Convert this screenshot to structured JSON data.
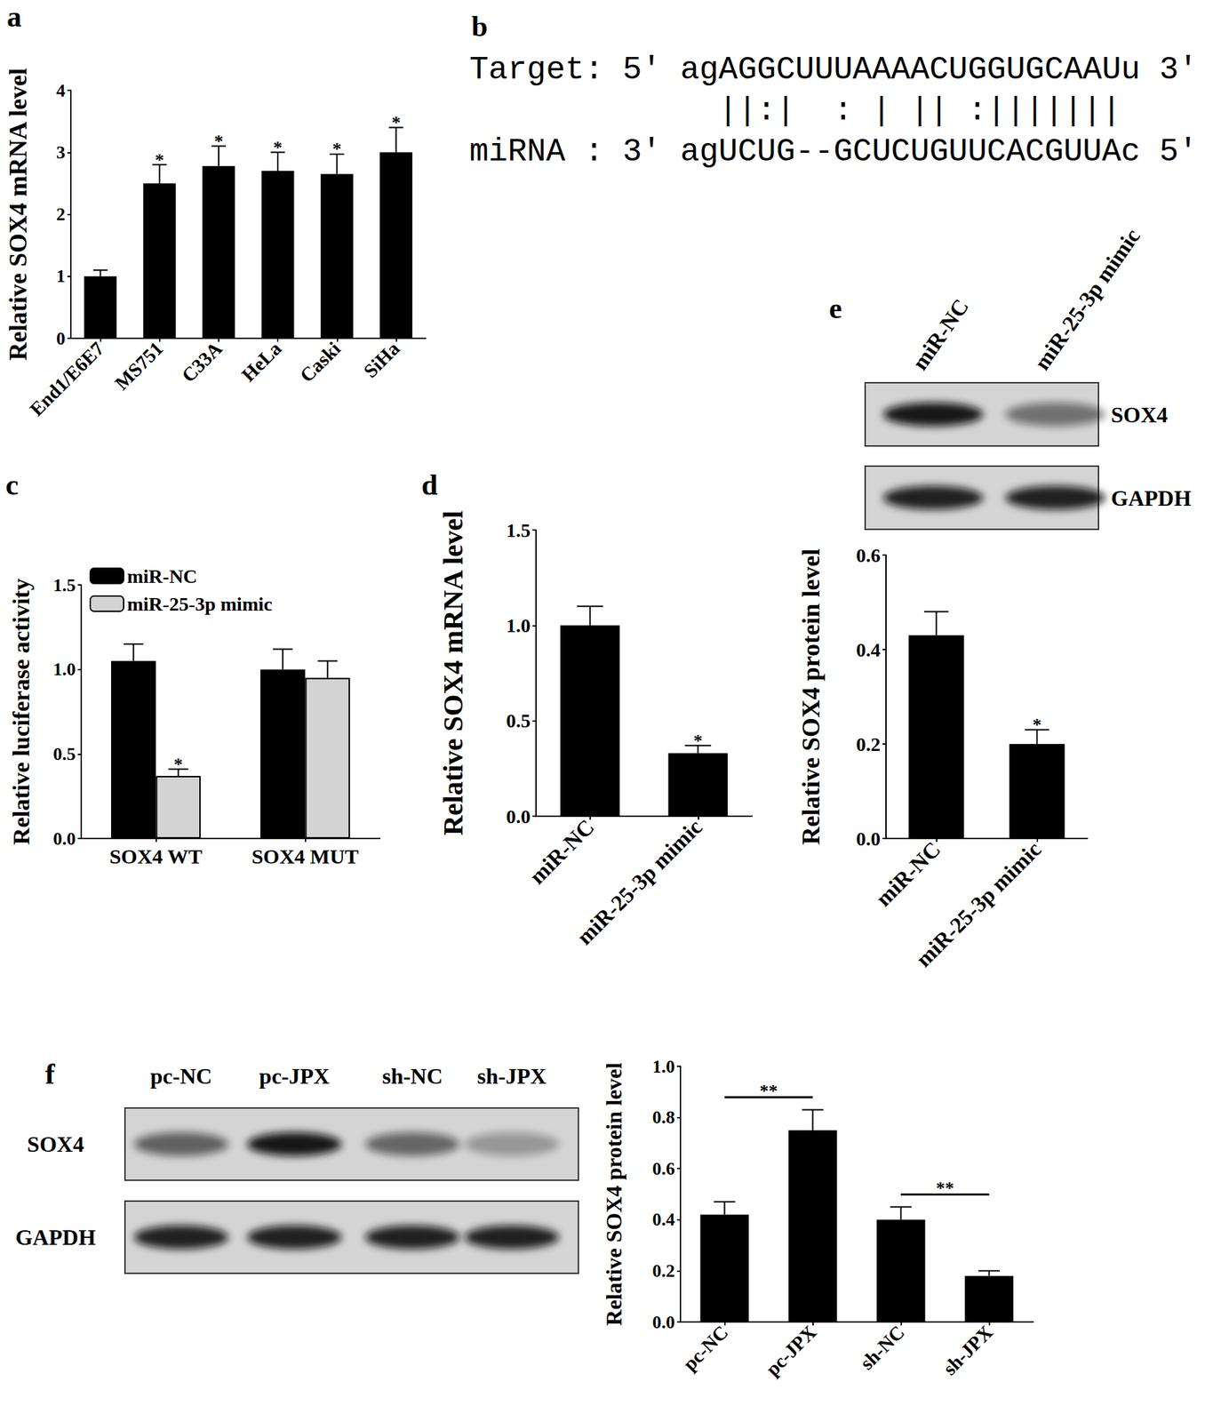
{
  "chart_data": [
    {
      "panel": "a",
      "type": "bar",
      "y_label": "Relative SOX4 mRNA level",
      "categories": [
        "End1/E6E7",
        "MS751",
        "C33A",
        "HeLa",
        "Caski",
        "SiHa"
      ],
      "values": [
        1.0,
        2.5,
        2.78,
        2.7,
        2.65,
        3.0
      ],
      "errors": [
        0.1,
        0.3,
        0.32,
        0.3,
        0.32,
        0.4
      ],
      "annotations": [
        {
          "category": "MS751",
          "text": "*"
        },
        {
          "category": "C33A",
          "text": "*"
        },
        {
          "category": "HeLa",
          "text": "*"
        },
        {
          "category": "Caski",
          "text": "*"
        },
        {
          "category": "SiHa",
          "text": "*"
        }
      ],
      "color": "#000000",
      "ylim": [
        0,
        4
      ],
      "yticks": [
        0,
        1,
        2,
        3,
        4
      ],
      "grid": false
    },
    {
      "panel": "c",
      "type": "bar",
      "y_label": "Relative luciferase activity",
      "categories": [
        "SOX4 WT",
        "SOX4 MUT"
      ],
      "series": [
        {
          "name": "miR-NC",
          "color": "#000000",
          "values": [
            1.05,
            1.0
          ],
          "errors": [
            0.1,
            0.12
          ]
        },
        {
          "name": "miR-25-3p mimic",
          "color": "#d3d3d3",
          "values": [
            0.37,
            0.95
          ],
          "errors": [
            0.04,
            0.1
          ]
        }
      ],
      "annotations": [
        {
          "category": "SOX4 WT",
          "series": "miR-25-3p mimic",
          "text": "*"
        }
      ],
      "legend": "top-left",
      "ylim": [
        0,
        1.5
      ],
      "yticks": [
        {
          "value": 0,
          "label": "0.0"
        },
        0.5,
        {
          "value": 1,
          "label": "1.0"
        },
        1.5
      ],
      "grid": false
    },
    {
      "panel": "d",
      "type": "bar",
      "y_label": "Relative SOX4 mRNA level",
      "categories": [
        "miR-NC",
        "miR-25-3p mimic"
      ],
      "values": [
        1.0,
        0.33
      ],
      "errors": [
        0.1,
        0.04
      ],
      "annotations": [
        {
          "category": "miR-25-3p mimic",
          "text": "*"
        }
      ],
      "color": "#000000",
      "ylim": [
        0,
        1.5
      ],
      "yticks": [
        {
          "value": 0,
          "label": "0.0"
        },
        0.5,
        {
          "value": 1,
          "label": "1.0"
        },
        1.5
      ],
      "grid": false
    },
    {
      "panel": "e",
      "type": "bar",
      "y_label": "Relative SOX4 protein level",
      "categories": [
        "miR-NC",
        "miR-25-3p mimic"
      ],
      "values": [
        0.43,
        0.2
      ],
      "errors": [
        0.05,
        0.03
      ],
      "annotations": [
        {
          "category": "miR-25-3p mimic",
          "text": "*"
        }
      ],
      "color": "#000000",
      "ylim": [
        0,
        0.6
      ],
      "yticks": [
        {
          "value": 0,
          "label": "0.0"
        },
        0.2,
        0.4,
        0.6
      ],
      "grid": false
    },
    {
      "panel": "f",
      "type": "bar",
      "y_label": "Relative SOX4 protein level",
      "categories": [
        "pc-NC",
        "pc-JPX",
        "sh-NC",
        "sh-JPX"
      ],
      "values": [
        0.42,
        0.75,
        0.4,
        0.18
      ],
      "errors": [
        0.05,
        0.08,
        0.05,
        0.02
      ],
      "comparisons": [
        {
          "from": "pc-NC",
          "to": "pc-JPX",
          "text": "**"
        },
        {
          "from": "sh-NC",
          "to": "sh-JPX",
          "text": "**"
        }
      ],
      "color": "#000000",
      "ylim": [
        0,
        1.0
      ],
      "yticks": [
        {
          "value": 0,
          "label": "0.0"
        },
        0.2,
        0.4,
        0.6,
        0.8,
        {
          "value": 1,
          "label": "1.0"
        }
      ],
      "grid": false
    }
  ],
  "alignment": {
    "panel": "b",
    "rows": [
      "Target: 5' agAGGCUUUAAAACUGGUGCAAUu 3'",
      "             ||:|  : | || :|||||||",
      "miRNA : 3' agUCUG--GCUCUGUUCACGUUAc 5'"
    ]
  },
  "blots": [
    {
      "panel": "e",
      "lanes": [
        "miR-NC",
        "miR-25-3p mimic"
      ],
      "rows": [
        "SOX4",
        "GAPDH"
      ]
    },
    {
      "panel": "f",
      "lanes": [
        "pc-NC",
        "pc-JPX",
        "sh-NC",
        "sh-JPX"
      ],
      "rows": [
        "SOX4",
        "GAPDH"
      ]
    }
  ]
}
